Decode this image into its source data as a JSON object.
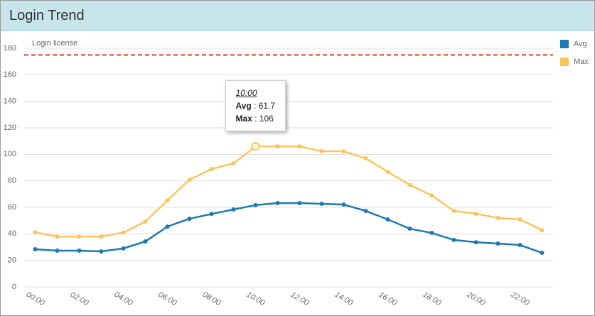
{
  "header": {
    "title": "Login Trend"
  },
  "chart_data": {
    "type": "line",
    "categories": [
      "00:00",
      null,
      "02:00",
      null,
      "04:00",
      null,
      "06:00",
      null,
      "08:00",
      null,
      "10:00",
      null,
      "12:00",
      null,
      "14:00",
      null,
      "16:00",
      null,
      "18:00",
      null,
      "20:00",
      null,
      "22:00",
      null
    ],
    "series": [
      {
        "name": "Avg",
        "color": "#1f78b4",
        "values": [
          28.4,
          27.3,
          27.3,
          26.8,
          29,
          34.3,
          45.5,
          51.4,
          55,
          58.4,
          61.7,
          63.2,
          63.2,
          62.7,
          62.1,
          57.3,
          50.9,
          43.9,
          40.7,
          35.4,
          33.7,
          32.7,
          31.6,
          25.7
        ]
      },
      {
        "name": "Max",
        "color": "#fcc45c",
        "values": [
          41.2,
          38,
          38,
          38,
          41,
          49.3,
          65.3,
          80.9,
          88.9,
          93.2,
          106,
          106,
          106,
          102.3,
          102.3,
          97,
          86.8,
          77,
          69,
          57.3,
          55.2,
          52,
          50.9,
          42.8
        ]
      }
    ],
    "ylim": [
      0,
      180
    ],
    "yticks": [
      0,
      20,
      40,
      60,
      80,
      100,
      120,
      140,
      160,
      180
    ],
    "grid": true,
    "legend": "top-right",
    "annotation": {
      "label": "Login license",
      "value": 175,
      "color": "#d9411e"
    },
    "tooltip": {
      "x": "10:00"
    }
  }
}
